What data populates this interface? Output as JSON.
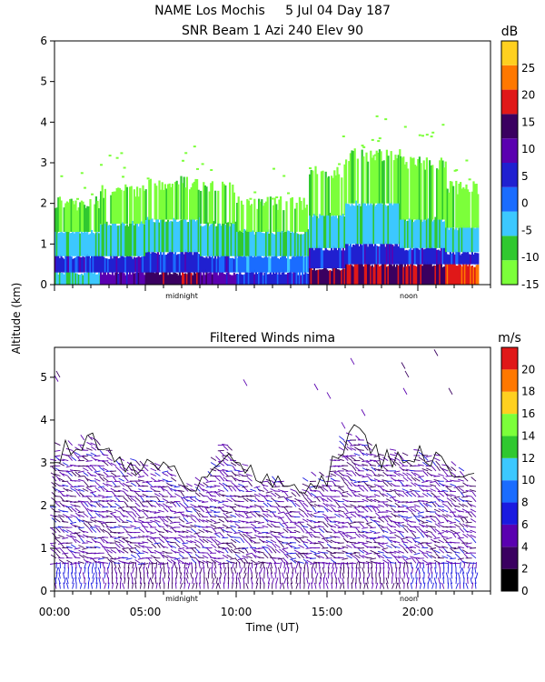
{
  "header": {
    "line1": "NAME Los Mochis     5 Jul 04 Day 187",
    "line2": "SNR Beam 1 Azi 240 Elev 90"
  },
  "chart_data": [
    {
      "type": "heatmap",
      "title": "NAME Los Mochis     5 Jul 04 Day 187 / SNR Beam 1 Azi 240 Elev 90",
      "ylabel": "Altitude (km)",
      "ylim": [
        0,
        6
      ],
      "yticks": [
        0,
        1,
        2,
        3,
        4,
        5,
        6
      ],
      "xlim": [
        0,
        24
      ],
      "x_markers": [
        {
          "x": 7,
          "label": "midnight"
        },
        {
          "x": 19.5,
          "label": "noon"
        }
      ],
      "colorbar": {
        "unit": "dB",
        "range": [
          -15,
          30
        ],
        "ticks": [
          -15,
          -10,
          -5,
          0,
          5,
          10,
          15,
          20,
          25
        ],
        "colors": [
          "#7cff3a",
          "#30c830",
          "#3cc8ff",
          "#1a6cff",
          "#2020d0",
          "#5a00b0",
          "#3a0060",
          "#e01818",
          "#ff7800",
          "#ffd020"
        ]
      },
      "profiles": [
        {
          "x_start": 0,
          "x_end": 2.5,
          "layers": [
            [
              0,
              0.3,
              -5
            ],
            [
              0.3,
              0.7,
              5
            ],
            [
              0.7,
              1.3,
              -5
            ],
            [
              1.3,
              2.0,
              -12
            ]
          ]
        },
        {
          "x_start": 2.5,
          "x_end": 5,
          "layers": [
            [
              0,
              0.3,
              10
            ],
            [
              0.3,
              0.7,
              5
            ],
            [
              0.7,
              1.5,
              -5
            ],
            [
              1.5,
              2.3,
              -12
            ]
          ]
        },
        {
          "x_start": 5,
          "x_end": 8,
          "layers": [
            [
              0,
              0.3,
              15
            ],
            [
              0.3,
              0.8,
              5
            ],
            [
              0.8,
              1.6,
              -5
            ],
            [
              1.6,
              2.5,
              -12
            ]
          ]
        },
        {
          "x_start": 8,
          "x_end": 10,
          "layers": [
            [
              0,
              0.3,
              10
            ],
            [
              0.3,
              0.7,
              5
            ],
            [
              0.7,
              1.5,
              -5
            ],
            [
              1.5,
              2.4,
              -12
            ]
          ]
        },
        {
          "x_start": 10,
          "x_end": 14,
          "layers": [
            [
              0,
              0.3,
              5
            ],
            [
              0.3,
              0.7,
              0
            ],
            [
              0.7,
              1.3,
              -5
            ],
            [
              1.3,
              2.0,
              -12
            ]
          ]
        },
        {
          "x_start": 14,
          "x_end": 16,
          "layers": [
            [
              0,
              0.4,
              15
            ],
            [
              0.4,
              0.9,
              5
            ],
            [
              0.9,
              1.7,
              -5
            ],
            [
              1.7,
              2.8,
              -12
            ]
          ]
        },
        {
          "x_start": 16,
          "x_end": 19,
          "layers": [
            [
              0,
              0.5,
              15
            ],
            [
              0.5,
              1.0,
              5
            ],
            [
              1.0,
              2.0,
              -5
            ],
            [
              2.0,
              3.2,
              -12
            ]
          ]
        },
        {
          "x_start": 19,
          "x_end": 21.5,
          "layers": [
            [
              0,
              0.5,
              15
            ],
            [
              0.5,
              0.9,
              5
            ],
            [
              0.9,
              1.6,
              -5
            ],
            [
              1.6,
              3.0,
              -12
            ]
          ]
        },
        {
          "x_start": 21.5,
          "x_end": 23.3,
          "layers": [
            [
              0,
              0.5,
              20
            ],
            [
              0.5,
              0.8,
              5
            ],
            [
              0.8,
              1.4,
              -5
            ],
            [
              1.4,
              2.4,
              -12
            ]
          ]
        }
      ]
    },
    {
      "type": "scatter",
      "title": "Filtered Winds nima",
      "xlabel": "Time (UT)",
      "ylabel": "Altitude (km)",
      "ylim": [
        0,
        5.7
      ],
      "yticks": [
        0,
        1,
        2,
        3,
        4,
        5
      ],
      "xlim": [
        0,
        24
      ],
      "xticks": [
        {
          "x": 0,
          "label": "00:00"
        },
        {
          "x": 5,
          "label": "05:00"
        },
        {
          "x": 10,
          "label": "10:00"
        },
        {
          "x": 15,
          "label": "15:00"
        },
        {
          "x": 20,
          "label": "20:00"
        }
      ],
      "x_markers": [
        {
          "x": 7,
          "label": "midnight"
        },
        {
          "x": 19.5,
          "label": "noon"
        }
      ],
      "colorbar": {
        "unit": "m/s",
        "range": [
          0,
          22
        ],
        "ticks": [
          0,
          2,
          4,
          6,
          8,
          10,
          12,
          14,
          16,
          18,
          20
        ],
        "colors": [
          "#000000",
          "#3a0060",
          "#5a00b0",
          "#1a1ae0",
          "#1a6cff",
          "#3cc8ff",
          "#30c830",
          "#7cff3a",
          "#ffd020",
          "#ff7800",
          "#e01818"
        ]
      },
      "wind_top_km": [
        {
          "x": 0,
          "top": 3.2
        },
        {
          "x": 2,
          "top": 3.5
        },
        {
          "x": 4,
          "top": 3.0
        },
        {
          "x": 6,
          "top": 2.8
        },
        {
          "x": 8,
          "top": 2.5
        },
        {
          "x": 9.5,
          "top": 3.4
        },
        {
          "x": 11,
          "top": 2.6
        },
        {
          "x": 13,
          "top": 2.4
        },
        {
          "x": 15,
          "top": 2.7
        },
        {
          "x": 16.5,
          "top": 3.8
        },
        {
          "x": 18,
          "top": 3.1
        },
        {
          "x": 20,
          "top": 3.2
        },
        {
          "x": 22,
          "top": 2.9
        },
        {
          "x": 23.3,
          "top": 2.6
        }
      ]
    }
  ]
}
